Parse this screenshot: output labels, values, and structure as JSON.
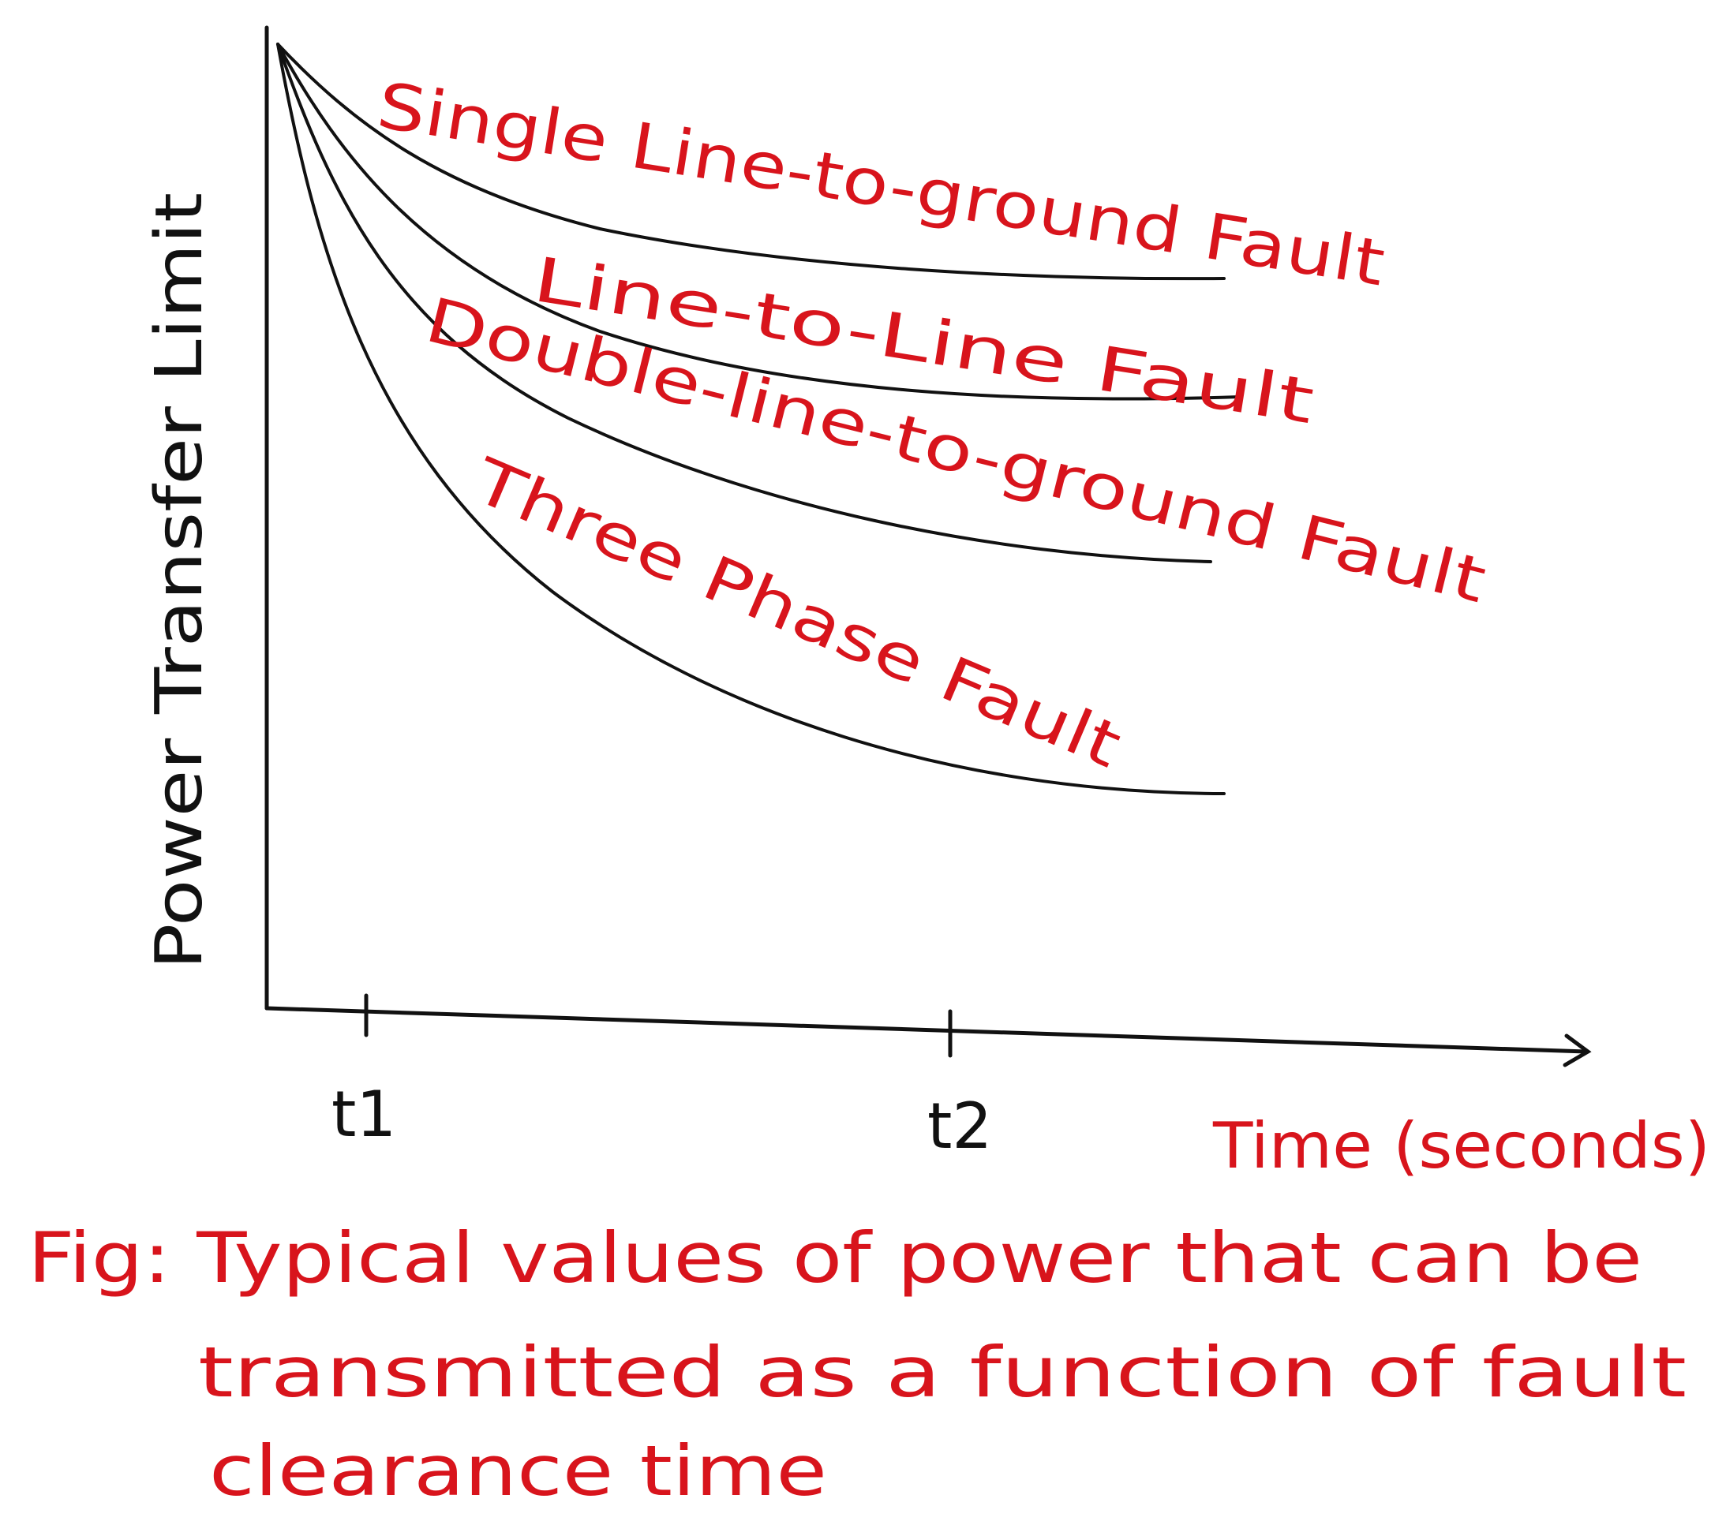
{
  "y_axis": {
    "label": "Power Transfer Limit"
  },
  "x_axis": {
    "label": "Time (seconds)",
    "ticks": [
      "t1",
      "t2"
    ]
  },
  "curves": [
    {
      "label": "Single Line-to-ground Fault"
    },
    {
      "label": "Line-to-Line Fault"
    },
    {
      "label": "Double-line-to-ground Fault"
    },
    {
      "label": "Three Phase Fault"
    }
  ],
  "caption": {
    "lines": [
      "Fig: Typical values of power that can be",
      "transmitted as a function of fault",
      "clearance time"
    ]
  }
}
